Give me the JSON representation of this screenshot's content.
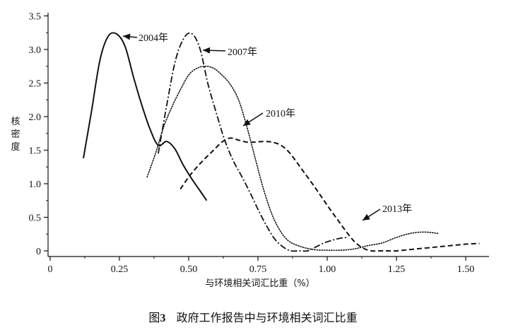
{
  "chart_data": {
    "type": "line",
    "title": "",
    "xlabel": "与环境相关词汇比重（%）",
    "ylabel": "核密度",
    "xlim": [
      -0.02,
      1.56
    ],
    "ylim": [
      -0.05,
      3.5
    ],
    "x_ticks": [
      0,
      0.25,
      0.5,
      0.75,
      1.0,
      1.25,
      1.5
    ],
    "x_tick_labels": [
      "0",
      "0.25",
      "0.50",
      "0.75",
      "1.00",
      "1.25",
      "1.50"
    ],
    "y_ticks": [
      0,
      0.5,
      1.0,
      1.5,
      2.0,
      2.5,
      3.0,
      3.5
    ],
    "y_tick_labels": [
      "0",
      "0.5",
      "1.0",
      "1.5",
      "2.0",
      "2.5",
      "3.0",
      "3.5"
    ],
    "grid": false,
    "series": [
      {
        "name": "2004年",
        "line_style": "solid",
        "x": [
          0.12,
          0.15,
          0.18,
          0.21,
          0.24,
          0.27,
          0.3,
          0.33,
          0.36,
          0.39,
          0.42,
          0.45,
          0.48,
          0.51,
          0.54,
          0.565
        ],
        "y": [
          1.38,
          2.1,
          2.85,
          3.2,
          3.23,
          3.05,
          2.6,
          2.18,
          1.82,
          1.57,
          1.63,
          1.52,
          1.28,
          1.08,
          0.9,
          0.75
        ]
      },
      {
        "name": "2007年",
        "line_style": "dashdot",
        "x": [
          0.39,
          0.42,
          0.45,
          0.48,
          0.51,
          0.54,
          0.57,
          0.6,
          0.63,
          0.66,
          0.69,
          0.72,
          0.75,
          0.78,
          0.81,
          0.84,
          0.87,
          0.9,
          0.93,
          0.96,
          0.99,
          1.02,
          1.05,
          1.075
        ],
        "y": [
          1.45,
          2.15,
          2.8,
          3.15,
          3.24,
          3.02,
          2.48,
          2.05,
          1.65,
          1.35,
          1.12,
          0.88,
          0.62,
          0.38,
          0.18,
          0.06,
          0.0,
          0.0,
          0.0,
          0.06,
          0.12,
          0.16,
          0.19,
          0.2
        ]
      },
      {
        "name": "2010年",
        "line_style": "dotted",
        "x": [
          0.35,
          0.38,
          0.41,
          0.44,
          0.47,
          0.5,
          0.53,
          0.56,
          0.59,
          0.62,
          0.65,
          0.68,
          0.71,
          0.74,
          0.77,
          0.8,
          0.83,
          0.86,
          0.9,
          0.95,
          1.0,
          1.05,
          1.1,
          1.15,
          1.2,
          1.25,
          1.3,
          1.35,
          1.4
        ],
        "y": [
          1.1,
          1.45,
          1.85,
          2.15,
          2.4,
          2.62,
          2.72,
          2.75,
          2.72,
          2.62,
          2.48,
          2.25,
          1.85,
          1.38,
          0.92,
          0.55,
          0.3,
          0.15,
          0.07,
          0.02,
          0.01,
          0.01,
          0.03,
          0.08,
          0.12,
          0.2,
          0.26,
          0.28,
          0.26
        ]
      },
      {
        "name": "2013年",
        "line_style": "dashed",
        "x": [
          0.47,
          0.5,
          0.53,
          0.56,
          0.59,
          0.62,
          0.65,
          0.68,
          0.71,
          0.74,
          0.77,
          0.8,
          0.83,
          0.86,
          0.89,
          0.92,
          0.95,
          0.98,
          1.01,
          1.04,
          1.07,
          1.1,
          1.13,
          1.16,
          1.19,
          1.22,
          1.25,
          1.3,
          1.35,
          1.4,
          1.45,
          1.5,
          1.55
        ],
        "y": [
          0.92,
          1.1,
          1.25,
          1.38,
          1.5,
          1.62,
          1.68,
          1.65,
          1.62,
          1.62,
          1.63,
          1.62,
          1.58,
          1.48,
          1.32,
          1.15,
          0.98,
          0.8,
          0.62,
          0.45,
          0.28,
          0.13,
          0.04,
          0.0,
          0.0,
          0.0,
          0.0,
          0.02,
          0.04,
          0.06,
          0.08,
          0.1,
          0.11
        ]
      }
    ],
    "annotations": [
      {
        "text": "2004年",
        "series": "2004年"
      },
      {
        "text": "2007年",
        "series": "2007年"
      },
      {
        "text": "2010年",
        "series": "2010年"
      },
      {
        "text": "2013年",
        "series": "2013年"
      }
    ]
  },
  "caption": {
    "prefix": "图",
    "number": "3",
    "text": "政府工作报告中与环境相关词汇比重"
  }
}
